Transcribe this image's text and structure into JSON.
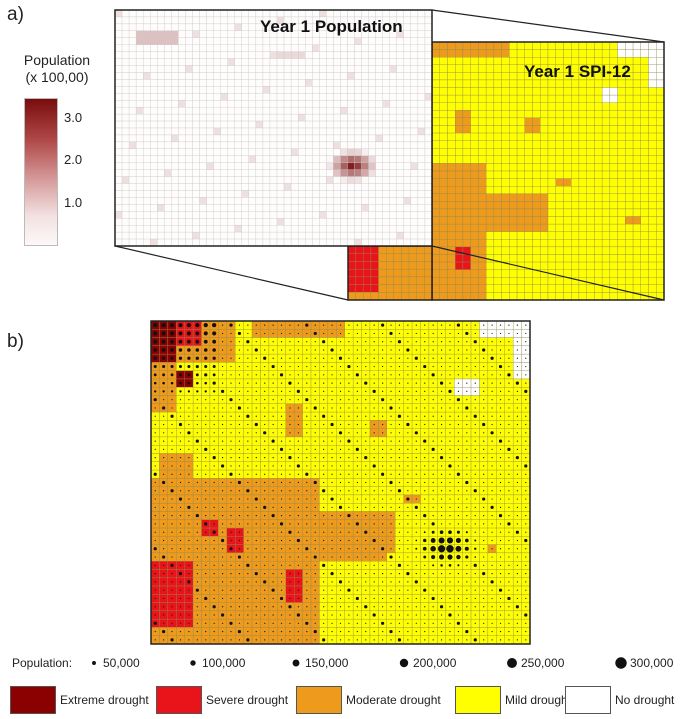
{
  "panel_a": {
    "label": "a)",
    "population_layer_title": "Year 1 Population",
    "spi_layer_title": "Year 1 SPI-12",
    "colorbar": {
      "title_line1": "Population",
      "title_line2": "(x 100,00)",
      "ticks": [
        "3.0",
        "2.0",
        "1.0"
      ],
      "color_low": "#fbf3f3",
      "color_high": "#7a0c0c"
    }
  },
  "panel_b": {
    "label": "b)"
  },
  "population_legend": {
    "title": "Population:",
    "items": [
      {
        "label": "50,000",
        "size": 1
      },
      {
        "label": "100,000",
        "size": 2
      },
      {
        "label": "150,000",
        "size": 3
      },
      {
        "label": "200,000",
        "size": 4
      },
      {
        "label": "250,000",
        "size": 5
      },
      {
        "label": "300,000",
        "size": 6
      }
    ]
  },
  "drought_legend": {
    "items": [
      {
        "label": "Extreme drought",
        "color": "#8b0000"
      },
      {
        "label": "Severe drought",
        "color": "#e8141a"
      },
      {
        "label": "Moderate drought",
        "color": "#ee9a1c"
      },
      {
        "label": "Mild drought",
        "color": "#ffff00"
      },
      {
        "label": "No drought",
        "color": "#ffffff"
      }
    ]
  }
}
